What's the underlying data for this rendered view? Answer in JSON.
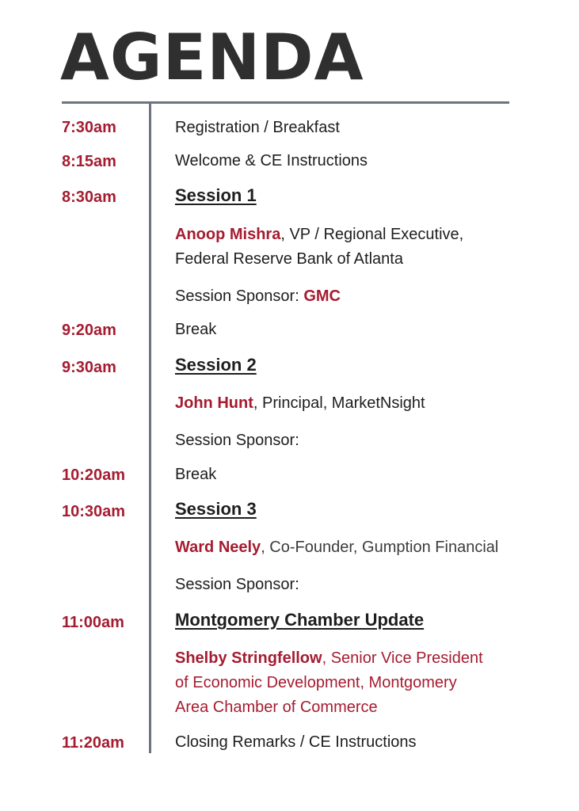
{
  "title": "AGENDA",
  "items": [
    {
      "time": "7:30am",
      "text": "Registration / Breakfast"
    },
    {
      "time": "8:15am",
      "text": "Welcome & CE Instructions"
    },
    {
      "time": "8:30am",
      "session": "Session 1",
      "speaker": "Anoop Mishra",
      "speaker_rest": ", VP / Regional Executive,",
      "speaker_line2": "Federal Reserve Bank of Atlanta",
      "sponsor_label": "Session Sponsor: ",
      "sponsor": "GMC"
    },
    {
      "time": "9:20am",
      "text": "Break"
    },
    {
      "time": "9:30am",
      "session": "Session 2",
      "speaker": "John Hunt",
      "speaker_rest": ", Principal, MarketNsight",
      "sponsor_label": "Session Sponsor:"
    },
    {
      "time": "10:20am",
      "text": "Break"
    },
    {
      "time": "10:30am",
      "session": "Session 3",
      "speaker": "Ward Neely",
      "speaker_rest": ", Co-Founder, Gumption Financial",
      "sponsor_label": "Session Sponsor:"
    },
    {
      "time": "11:00am",
      "session": "Montgomery Chamber Update",
      "speaker": "Shelby Stringfellow",
      "speaker_rest": ", Senior Vice President",
      "speaker_line2": "of Economic Development, Montgomery",
      "speaker_line3": "Area Chamber of Commerce"
    },
    {
      "time": "11:20am",
      "text": "Closing Remarks / CE Instructions"
    }
  ]
}
